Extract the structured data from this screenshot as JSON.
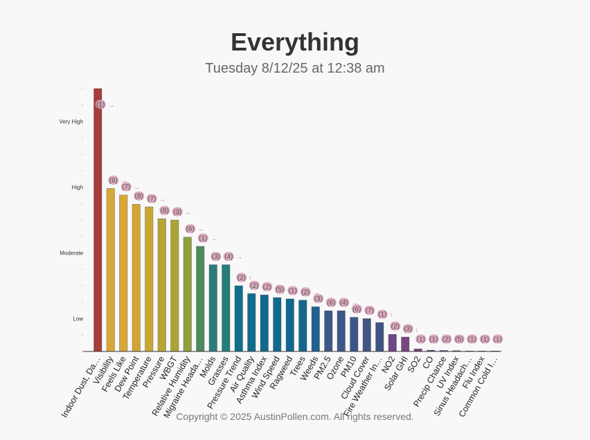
{
  "header": {
    "title": "Everything",
    "subtitle": "Tuesday 8/12/25 at 12:38 am"
  },
  "footer": {
    "copyright": "Copyright © 2025 AustinPollen.com.  All rights reserved."
  },
  "chart_data": {
    "type": "bar",
    "title": "Everything",
    "subtitle": "Tuesday 8/12/25 at 12:38 am",
    "xlabel": "",
    "ylabel": "",
    "ylim": [
      0,
      100
    ],
    "y_levels": [
      {
        "label": "Low",
        "value": 12.5
      },
      {
        "label": "Moderate",
        "value": 37.5
      },
      {
        "label": "High",
        "value": 62.5
      },
      {
        "label": "Very High",
        "value": 87.5
      }
    ],
    "grid": false,
    "categories": [
      "Indoor Dust, Da…",
      "Visibility",
      "Feels Like",
      "Dew Point",
      "Temperature",
      "Pressure",
      "WBGT",
      "Relative Humidity",
      "Migraine Heada…",
      "Molds",
      "Grasses",
      "Pressure Trend",
      "Air Quality",
      "Asthma Index",
      "Wind Speed",
      "Ragweed",
      "Trees",
      "Weeds",
      "PM2.5",
      "Ozone",
      "PM10",
      "Cloud Cover",
      "Fire Weather In…",
      "NO2",
      "Solar GHI",
      "SO2",
      "CO",
      "Precip Chance",
      "UV Index",
      "Sinus Headach…",
      "Flu Index",
      "Common Cold I…"
    ],
    "values": [
      100,
      62,
      59.5,
      56,
      55,
      50.5,
      50,
      43.5,
      40,
      33,
      33,
      25,
      22,
      21.5,
      20.5,
      20,
      19.5,
      17,
      15.5,
      15.5,
      13,
      12.5,
      11,
      6.5,
      5.5,
      1,
      0.5,
      0.4,
      0.3,
      0.2,
      0.2,
      0.2
    ],
    "colors": [
      "#a63d3a",
      "#d8a735",
      "#d8a735",
      "#d3a633",
      "#c9a733",
      "#b8a432",
      "#a9a634",
      "#8fa03d",
      "#4f8a5f",
      "#2a7e78",
      "#257e7a",
      "#0f6f8c",
      "#0f6d8d",
      "#0f6b8d",
      "#0f698e",
      "#10678f",
      "#14668f",
      "#1e628f",
      "#3b5889",
      "#3d5788",
      "#3e5687",
      "#435486",
      "#3f5285",
      "#6d4786",
      "#784583",
      "#764581",
      "#6a4b84",
      "#5a4d88",
      "#6b4a7e",
      "#70507e",
      "#7b5a82",
      "#6a4f7c"
    ],
    "badges": [
      "(1)",
      "(6)",
      "(7)",
      "(8)",
      "(7)",
      "(6)",
      "(3)",
      "(6)",
      "(1)",
      "(3)",
      "(4)",
      "(2)",
      "(2)",
      "(2)",
      "(5)",
      "(1)",
      "(2)",
      "(3)",
      "(6)",
      "(4)",
      "(6)",
      "(7)",
      "(1)",
      "(2)",
      "(3)",
      "(1)",
      "(1)",
      "(2)",
      "(5)",
      "(1)",
      "(1)",
      "(1)"
    ],
    "trends": [
      "→",
      "→",
      "→",
      "→",
      "→",
      "→",
      "→",
      "→",
      "→",
      "→",
      "→",
      "↑",
      "→",
      "→",
      "→",
      "→",
      "→",
      "→",
      "→",
      "→",
      "→",
      "→",
      "↑",
      "→",
      "↓",
      "",
      "",
      "→",
      "↓",
      "",
      "",
      ""
    ],
    "accent_colors": {
      "badge_fill": "#d9a0b8",
      "badge_text": "#555555",
      "trend": "#d07aa0",
      "axis": "#333333"
    }
  }
}
